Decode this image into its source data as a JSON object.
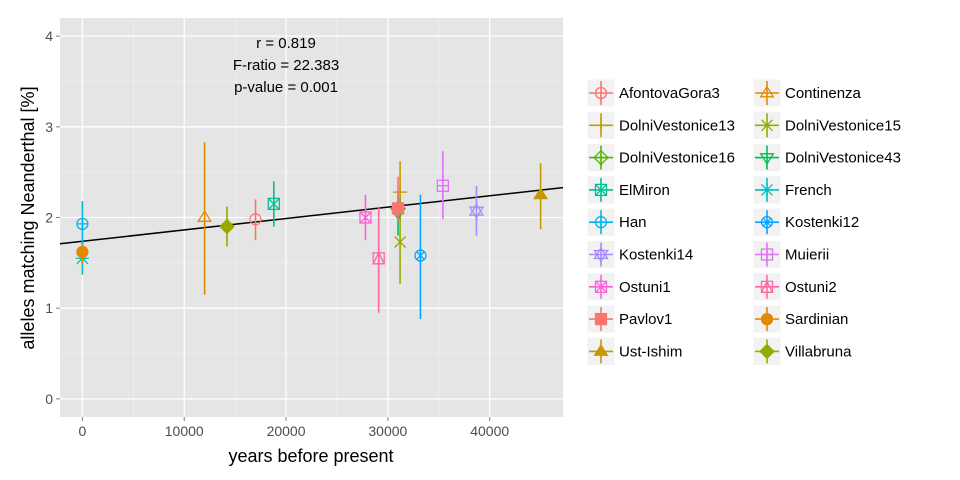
{
  "chart_data": {
    "type": "scatter",
    "xlabel": "years before present",
    "ylabel": "alleles matching Neanderthal [%]",
    "xlim": [
      -2200,
      47200
    ],
    "ylim": [
      -0.2,
      4.2
    ],
    "x_ticks": [
      0,
      10000,
      20000,
      30000,
      40000
    ],
    "y_ticks": [
      0,
      1,
      2,
      3,
      4
    ],
    "grid": true,
    "legend_position": "right",
    "annotations": [
      "r = 0.819",
      "F-ratio = 22.383",
      "p-value = 0.001"
    ],
    "regression_line": {
      "x": [
        -2200,
        47200
      ],
      "y": [
        1.71,
        2.33
      ]
    },
    "series": [
      {
        "name": "AfontovaGora3",
        "color": "#F8766D",
        "shape": "circle-open",
        "x": 17000,
        "y": 1.98,
        "ylow": 1.75,
        "yhigh": 2.2
      },
      {
        "name": "Continenza",
        "color": "#E38900",
        "shape": "triangle-open",
        "x": 12000,
        "y": 2.0,
        "ylow": 1.15,
        "yhigh": 2.83
      },
      {
        "name": "DolniVestonice13",
        "color": "#C49A00",
        "shape": "plus",
        "x": 31200,
        "y": 2.28,
        "ylow": 1.95,
        "yhigh": 2.62
      },
      {
        "name": "DolniVestonice15",
        "color": "#99A800",
        "shape": "cross",
        "x": 31200,
        "y": 1.73,
        "ylow": 1.27,
        "yhigh": 2.22
      },
      {
        "name": "DolniVestonice16",
        "color": "#53B400",
        "shape": "diamond-open",
        "x": 31000,
        "y": 2.1,
        "ylow": 1.95,
        "yhigh": 2.25
      },
      {
        "name": "DolniVestonice43",
        "color": "#00BC56",
        "shape": "triangle-down-open",
        "x": 31000,
        "y": 2.05,
        "ylow": 1.8,
        "yhigh": 2.3
      },
      {
        "name": "ElMiron",
        "color": "#00C094",
        "shape": "square-cross",
        "x": 18800,
        "y": 2.15,
        "ylow": 1.9,
        "yhigh": 2.4
      },
      {
        "name": "French",
        "color": "#00BFC4",
        "shape": "asterisk",
        "x": 0,
        "y": 1.55,
        "ylow": 1.37,
        "yhigh": 1.75
      },
      {
        "name": "Han",
        "color": "#00B6EB",
        "shape": "circle-plus",
        "x": 0,
        "y": 1.93,
        "ylow": 1.7,
        "yhigh": 2.18
      },
      {
        "name": "Kostenki12",
        "color": "#06A4FF",
        "shape": "circle-cross",
        "x": 33200,
        "y": 1.58,
        "ylow": 0.88,
        "yhigh": 2.25
      },
      {
        "name": "Kostenki14",
        "color": "#A58AFF",
        "shape": "star-of-david",
        "x": 38700,
        "y": 2.07,
        "ylow": 1.8,
        "yhigh": 2.35
      },
      {
        "name": "Muierii",
        "color": "#DF70F8",
        "shape": "square-plus",
        "x": 35400,
        "y": 2.35,
        "ylow": 1.98,
        "yhigh": 2.73
      },
      {
        "name": "Ostuni1",
        "color": "#FB61D7",
        "shape": "circle-x",
        "x": 27800,
        "y": 2.0,
        "ylow": 1.75,
        "yhigh": 2.25
      },
      {
        "name": "Ostuni2",
        "color": "#FF66A8",
        "shape": "square-triangle",
        "x": 29100,
        "y": 1.55,
        "ylow": 0.95,
        "yhigh": 2.12
      },
      {
        "name": "Pavlov1",
        "color": "#F8766D",
        "shape": "square",
        "x": 31000,
        "y": 2.1,
        "ylow": 1.95,
        "yhigh": 2.45
      },
      {
        "name": "Sardinian",
        "color": "#E38900",
        "shape": "circle",
        "x": 0,
        "y": 1.62,
        "ylow": 1.5,
        "yhigh": 1.7
      },
      {
        "name": "Ust-Ishim",
        "color": "#C49A00",
        "shape": "triangle",
        "x": 45000,
        "y": 2.25,
        "ylow": 1.87,
        "yhigh": 2.6
      },
      {
        "name": "Villabruna",
        "color": "#99A800",
        "shape": "diamond",
        "x": 14200,
        "y": 1.9,
        "ylow": 1.68,
        "yhigh": 2.12
      }
    ]
  }
}
